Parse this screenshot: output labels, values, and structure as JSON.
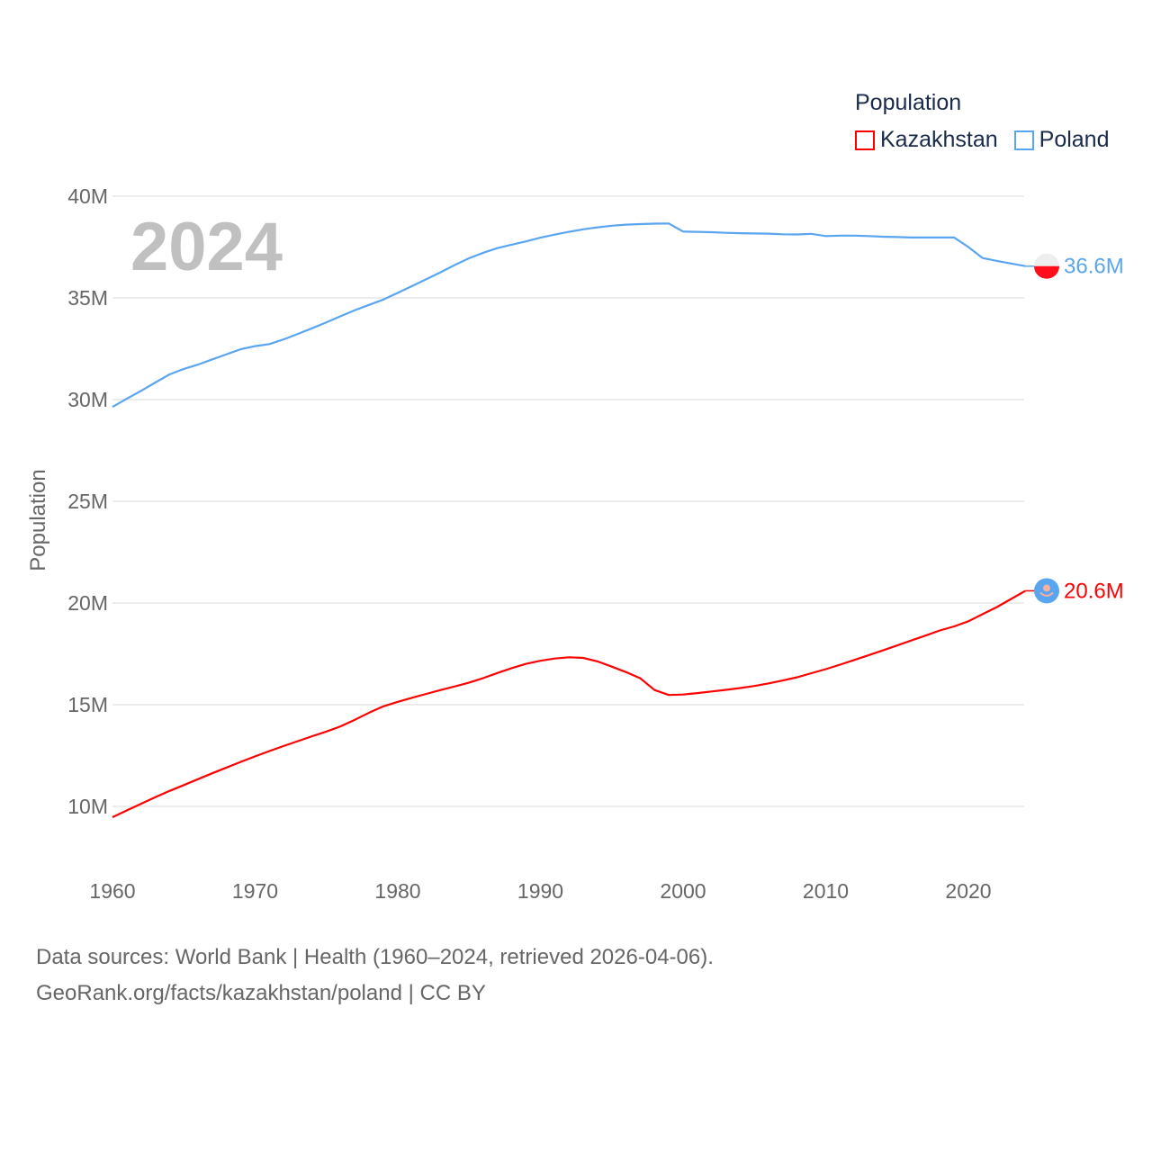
{
  "chart_data": {
    "type": "line",
    "title": "Population",
    "ylabel": "Population",
    "xlabel": "",
    "year_label": "2024",
    "ylim": [
      8000000,
      41000000
    ],
    "xlim": [
      1960,
      2024
    ],
    "y_ticks": [
      10000000,
      15000000,
      20000000,
      25000000,
      30000000,
      35000000,
      40000000
    ],
    "y_tick_labels": [
      "10M",
      "15M",
      "20M",
      "25M",
      "30M",
      "35M",
      "40M"
    ],
    "x_ticks": [
      1960,
      1970,
      1980,
      1990,
      2000,
      2010,
      2020
    ],
    "x_tick_labels": [
      "1960",
      "1970",
      "1980",
      "1990",
      "2000",
      "2010",
      "2020"
    ],
    "grid": true,
    "legend_position": "top-right",
    "x_start": 1960,
    "series": [
      {
        "name": "Kazakhstan",
        "color": "#ff0000",
        "end_label": "20.6M",
        "flag": "kazakhstan-flag",
        "values": [
          9.47,
          9.8,
          10.13,
          10.45,
          10.76,
          11.05,
          11.34,
          11.63,
          11.91,
          12.19,
          12.46,
          12.72,
          12.97,
          13.21,
          13.45,
          13.68,
          13.94,
          14.26,
          14.61,
          14.92,
          15.14,
          15.34,
          15.53,
          15.72,
          15.9,
          16.09,
          16.31,
          16.56,
          16.8,
          17.01,
          17.16,
          17.27,
          17.33,
          17.3,
          17.13,
          16.87,
          16.6,
          16.3,
          15.72,
          15.48,
          15.5,
          15.57,
          15.65,
          15.73,
          15.82,
          15.92,
          16.05,
          16.19,
          16.35,
          16.55,
          16.75,
          16.97,
          17.2,
          17.43,
          17.67,
          17.91,
          18.16,
          18.4,
          18.65,
          18.85,
          19.1,
          19.45,
          19.8,
          20.2,
          20.6
        ]
      },
      {
        "name": "Poland",
        "color": "#5aa5f0",
        "end_label": "36.6M",
        "flag": "poland-flag",
        "values": [
          29.64,
          30.04,
          30.43,
          30.84,
          31.24,
          31.51,
          31.72,
          31.98,
          32.23,
          32.48,
          32.63,
          32.73,
          32.96,
          33.23,
          33.51,
          33.8,
          34.1,
          34.4,
          34.66,
          34.92,
          35.25,
          35.58,
          35.92,
          36.26,
          36.62,
          36.95,
          37.22,
          37.45,
          37.62,
          37.78,
          37.96,
          38.11,
          38.25,
          38.37,
          38.47,
          38.55,
          38.6,
          38.63,
          38.65,
          38.66,
          38.26,
          38.25,
          38.23,
          38.2,
          38.18,
          38.17,
          38.16,
          38.13,
          38.12,
          38.15,
          38.04,
          38.06,
          38.06,
          38.04,
          38.01,
          37.99,
          37.97,
          37.97,
          37.97,
          37.97,
          37.5,
          36.96,
          36.82,
          36.69,
          36.56
        ]
      }
    ]
  },
  "footer": {
    "line1": "Data sources: World Bank | Health (1960–2024, retrieved 2026-04-06).",
    "line2": "GeoRank.org/facts/kazakhstan/poland | CC BY"
  }
}
